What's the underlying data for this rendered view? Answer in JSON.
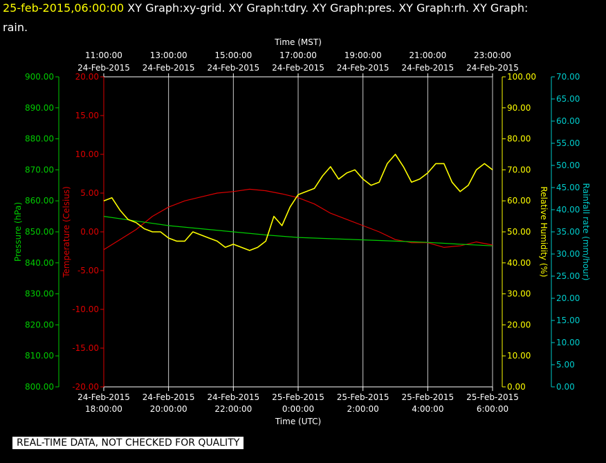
{
  "title": {
    "timestamp": "25-feb-2015,06:00:00",
    "line1_rest": "  XY Graph:xy-grid.  XY Graph:tdry.  XY Graph:pres.  XY Graph:rh.  XY Graph:",
    "line2": "rain."
  },
  "footer": {
    "quality_note": "REAL-TIME DATA, NOT CHECKED FOR QUALITY"
  },
  "chart_data": {
    "type": "line",
    "grid": "vertical lines only",
    "x_bottom": {
      "label": "Time (UTC)",
      "ticks": [
        {
          "date": "24-Feb-2015",
          "time": "18:00:00"
        },
        {
          "date": "24-Feb-2015",
          "time": "20:00:00"
        },
        {
          "date": "24-Feb-2015",
          "time": "22:00:00"
        },
        {
          "date": "25-Feb-2015",
          "time": "0:00:00"
        },
        {
          "date": "25-Feb-2015",
          "time": "2:00:00"
        },
        {
          "date": "25-Feb-2015",
          "time": "4:00:00"
        },
        {
          "date": "25-Feb-2015",
          "time": "6:00:00"
        }
      ]
    },
    "x_top": {
      "label": "Time (MST)",
      "ticks": [
        {
          "time": "11:00:00",
          "date": "24-Feb-2015"
        },
        {
          "time": "13:00:00",
          "date": "24-Feb-2015"
        },
        {
          "time": "15:00:00",
          "date": "24-Feb-2015"
        },
        {
          "time": "17:00:00",
          "date": "24-Feb-2015"
        },
        {
          "time": "19:00:00",
          "date": "24-Feb-2015"
        },
        {
          "time": "21:00:00",
          "date": "24-Feb-2015"
        },
        {
          "time": "23:00:00",
          "date": "24-Feb-2015"
        }
      ]
    },
    "axes": {
      "pressure": {
        "label": "Pressure (hPa)",
        "range": [
          800,
          900
        ],
        "ticks": [
          "900.00",
          "890.00",
          "880.00",
          "870.00",
          "860.00",
          "850.00",
          "840.00",
          "830.00",
          "820.00",
          "810.00",
          "800.00"
        ],
        "color": "#00cc00"
      },
      "temperature": {
        "label": "Temperature (Celsius)",
        "range": [
          -20,
          20
        ],
        "ticks": [
          "20.00",
          "15.00",
          "10.00",
          "5.00",
          "0.00",
          "-5.00",
          "-10.00",
          "-15.00",
          "-20.00"
        ],
        "color": "#dd0000"
      },
      "humidity": {
        "label": "Relative Humidity (%)",
        "range": [
          0,
          100
        ],
        "ticks": [
          "100.00",
          "90.00",
          "80.00",
          "70.00",
          "60.00",
          "50.00",
          "40.00",
          "30.00",
          "20.00",
          "10.00",
          "0.00"
        ],
        "color": "#ffff00"
      },
      "rain": {
        "label": "Rainfall rate (mm/hour)",
        "range": [
          0,
          70
        ],
        "ticks": [
          "70.00",
          "65.00",
          "60.00",
          "55.00",
          "50.00",
          "45.00",
          "40.00",
          "35.00",
          "30.00",
          "25.00",
          "20.00",
          "15.00",
          "10.00",
          "5.00",
          "0.00"
        ],
        "color": "#00cccc"
      }
    },
    "series": [
      {
        "name": "Temperature (Celsius)",
        "axis": "temperature",
        "color": "#dd0000",
        "hours": [
          0,
          0.5,
          1,
          1.5,
          2,
          2.5,
          3,
          3.5,
          4,
          4.5,
          5,
          5.5,
          6,
          6.5,
          7,
          7.5,
          8,
          8.5,
          9,
          9.5,
          10,
          10.5,
          11,
          11.5,
          12
        ],
        "values": [
          -2.3,
          -1.0,
          0.3,
          2.0,
          3.2,
          4.0,
          4.5,
          5.0,
          5.2,
          5.5,
          5.3,
          4.9,
          4.4,
          3.6,
          2.4,
          1.6,
          0.8,
          0.0,
          -1.0,
          -1.4,
          -1.4,
          -2.0,
          -1.8,
          -1.3,
          -1.7
        ]
      },
      {
        "name": "Pressure (hPa)",
        "axis": "pressure",
        "color": "#00cc00",
        "hours": [
          0,
          1,
          2,
          3,
          4,
          5,
          6,
          7,
          8,
          9,
          10,
          11,
          12
        ],
        "values": [
          855.0,
          853.5,
          852.0,
          851.0,
          850.0,
          849.0,
          848.2,
          847.8,
          847.4,
          847.0,
          846.6,
          846.0,
          845.5
        ]
      },
      {
        "name": "Relative Humidity (%)",
        "axis": "humidity",
        "color": "#ffff00",
        "hours": [
          0,
          0.25,
          0.5,
          0.75,
          1,
          1.25,
          1.5,
          1.75,
          2,
          2.25,
          2.5,
          2.75,
          3,
          3.25,
          3.5,
          3.75,
          4,
          4.25,
          4.5,
          4.75,
          5,
          5.25,
          5.5,
          5.75,
          6,
          6.25,
          6.5,
          6.75,
          7,
          7.25,
          7.5,
          7.75,
          8,
          8.25,
          8.5,
          8.75,
          9,
          9.25,
          9.5,
          9.75,
          10,
          10.25,
          10.5,
          10.75,
          11,
          11.25,
          11.5,
          11.75,
          12
        ],
        "values": [
          60,
          61,
          57,
          54,
          53,
          51,
          50,
          50,
          48,
          47,
          47,
          50,
          49,
          48,
          47,
          45,
          46,
          45,
          44,
          45,
          47,
          55,
          52,
          58,
          62,
          63,
          64,
          68,
          71,
          67,
          69,
          70,
          67,
          65,
          66,
          72,
          75,
          71,
          66,
          67,
          69,
          72,
          72,
          66,
          63,
          65,
          70,
          72,
          70
        ]
      }
    ]
  }
}
